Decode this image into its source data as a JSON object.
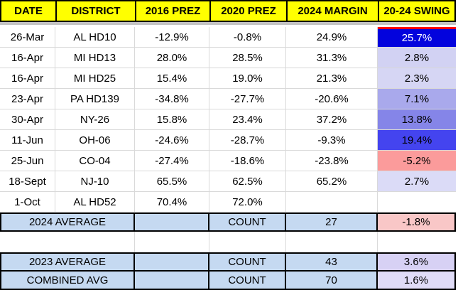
{
  "table": {
    "headers": [
      "DATE",
      "DISTRICT",
      "2016 PREZ",
      "2020 PREZ",
      "2024 MARGIN",
      "20-24 SWING"
    ],
    "header_bg": "#ffff00",
    "rows": [
      {
        "date": "26-Mar",
        "district": "AL HD10",
        "p16": "-12.9%",
        "p20": "-0.8%",
        "m24": "24.9%",
        "swing": "25.7%",
        "swing_bg": "#0303dd",
        "swing_fg": "#ffffff",
        "swing_border_top": "#ff0000"
      },
      {
        "date": "16-Apr",
        "district": "MI HD13",
        "p16": "28.0%",
        "p20": "28.5%",
        "m24": "31.3%",
        "swing": "2.8%",
        "swing_bg": "#d2d2f3"
      },
      {
        "date": "16-Apr",
        "district": "MI HD25",
        "p16": "15.4%",
        "p20": "19.0%",
        "m24": "21.3%",
        "swing": "2.3%",
        "swing_bg": "#d6d6f4"
      },
      {
        "date": "23-Apr",
        "district": "PA HD139",
        "p16": "-34.8%",
        "p20": "-27.7%",
        "m24": "-20.6%",
        "swing": "7.1%",
        "swing_bg": "#a9a9ec"
      },
      {
        "date": "30-Apr",
        "district": "NY-26",
        "p16": "15.8%",
        "p20": "23.4%",
        "m24": "37.2%",
        "swing": "13.8%",
        "swing_bg": "#8585e8"
      },
      {
        "date": "11-Jun",
        "district": "OH-06",
        "p16": "-24.6%",
        "p20": "-28.7%",
        "m24": "-9.3%",
        "swing": "19.4%",
        "swing_bg": "#4444ef"
      },
      {
        "date": "25-Jun",
        "district": "CO-04",
        "p16": "-27.4%",
        "p20": "-18.6%",
        "m24": "-23.8%",
        "swing": "-5.2%",
        "swing_bg": "#fb9b9b"
      },
      {
        "date": "18-Sept",
        "district": "NJ-10",
        "p16": "65.5%",
        "p20": "62.5%",
        "m24": "65.2%",
        "swing": "2.7%",
        "swing_bg": "#dbdbf7"
      },
      {
        "date": "1-Oct",
        "district": "AL HD52",
        "p16": "70.4%",
        "p20": "72.0%",
        "m24": "",
        "swing": ""
      }
    ],
    "summaries": [
      {
        "label": "2024 AVERAGE",
        "count_label": "COUNT",
        "count": "27",
        "swing": "-1.8%",
        "swing_bg": "#f9c7c7"
      },
      {
        "label": "2023 AVERAGE",
        "count_label": "COUNT",
        "count": "43",
        "swing": "3.6%",
        "swing_bg": "#d7d1f4"
      },
      {
        "label": "COMBINED AVG",
        "count_label": "COUNT",
        "count": "70",
        "swing": "1.6%",
        "swing_bg": "#e0dcf7"
      }
    ],
    "summary_bg": "#c5d9f1"
  }
}
